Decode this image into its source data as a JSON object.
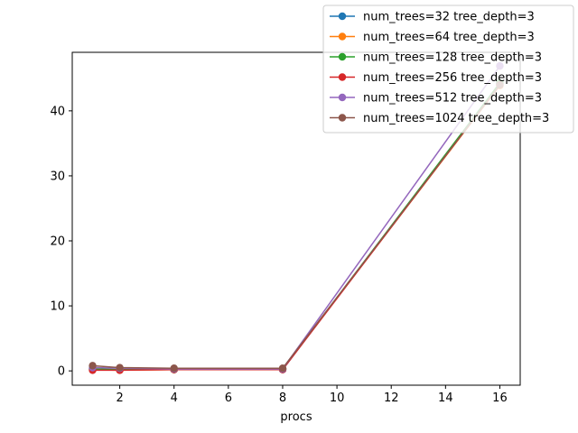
{
  "chart_data": {
    "type": "line",
    "xlabel": "procs",
    "ylabel": "",
    "title": "",
    "xlim": [
      0.25,
      16.75
    ],
    "ylim": [
      -2.2,
      49.0
    ],
    "xticks": [
      2,
      4,
      6,
      8,
      10,
      12,
      14,
      16
    ],
    "yticks": [
      0,
      10,
      20,
      30,
      40
    ],
    "legend_position": "top-right",
    "series": [
      {
        "name": "num_trees=32 tree_depth=3",
        "color": "#1f77b4",
        "x": [
          1,
          2,
          4,
          8,
          16
        ],
        "y": [
          0.3,
          0.2,
          0.2,
          0.2,
          44.2
        ]
      },
      {
        "name": "num_trees=64 tree_depth=3",
        "color": "#ff7f0e",
        "x": [
          1,
          2,
          4,
          8,
          16
        ],
        "y": [
          0.2,
          0.1,
          0.2,
          0.3,
          43.9
        ]
      },
      {
        "name": "num_trees=128 tree_depth=3",
        "color": "#2ca02c",
        "x": [
          1,
          2,
          4,
          8,
          16
        ],
        "y": [
          0.3,
          0.2,
          0.2,
          0.3,
          44.3
        ]
      },
      {
        "name": "num_trees=256 tree_depth=3",
        "color": "#d62728",
        "x": [
          1,
          2,
          4,
          8,
          16
        ],
        "y": [
          0.1,
          0.1,
          0.2,
          0.2,
          44.0
        ]
      },
      {
        "name": "num_trees=512 tree_depth=3",
        "color": "#9467bd",
        "x": [
          1,
          2,
          4,
          8,
          16
        ],
        "y": [
          0.5,
          0.4,
          0.3,
          0.3,
          46.9
        ]
      },
      {
        "name": "num_trees=1024 tree_depth=3",
        "color": "#8c564b",
        "x": [
          1,
          2,
          4,
          8,
          16
        ],
        "y": [
          0.8,
          0.5,
          0.4,
          0.4,
          44.0
        ]
      }
    ]
  }
}
